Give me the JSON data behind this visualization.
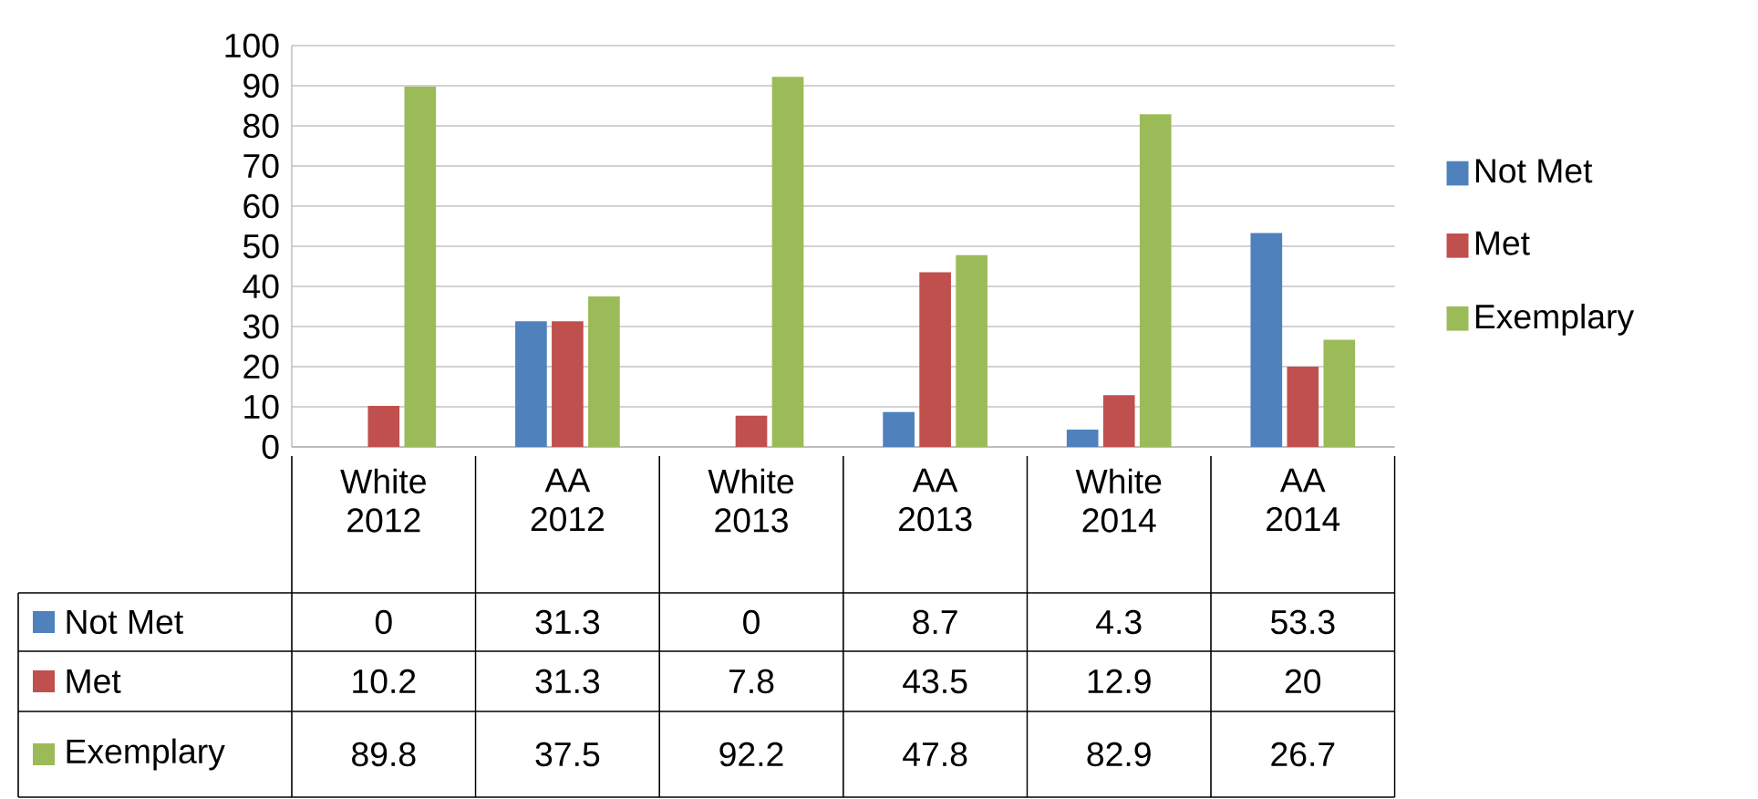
{
  "chart_data": {
    "type": "bar",
    "categories": [
      "White 2012",
      "AA 2012",
      "White 2013",
      "AA 2013",
      "White 2014",
      "AA 2014"
    ],
    "series": [
      {
        "name": "Not Met",
        "color": "#4f81bd",
        "values": [
          0,
          31.3,
          0,
          8.7,
          4.3,
          53.3
        ]
      },
      {
        "name": "Met",
        "color": "#c0504d",
        "values": [
          10.2,
          31.3,
          7.8,
          43.5,
          12.9,
          20
        ]
      },
      {
        "name": "Exemplary",
        "color": "#9bbb59",
        "values": [
          89.8,
          37.5,
          92.2,
          47.8,
          82.9,
          26.7
        ]
      }
    ],
    "ylim": [
      0,
      100
    ],
    "yticks": [
      0,
      10,
      20,
      30,
      40,
      50,
      60,
      70,
      80,
      90,
      100
    ],
    "grid": "y",
    "legend": "right",
    "data_labels": true
  }
}
